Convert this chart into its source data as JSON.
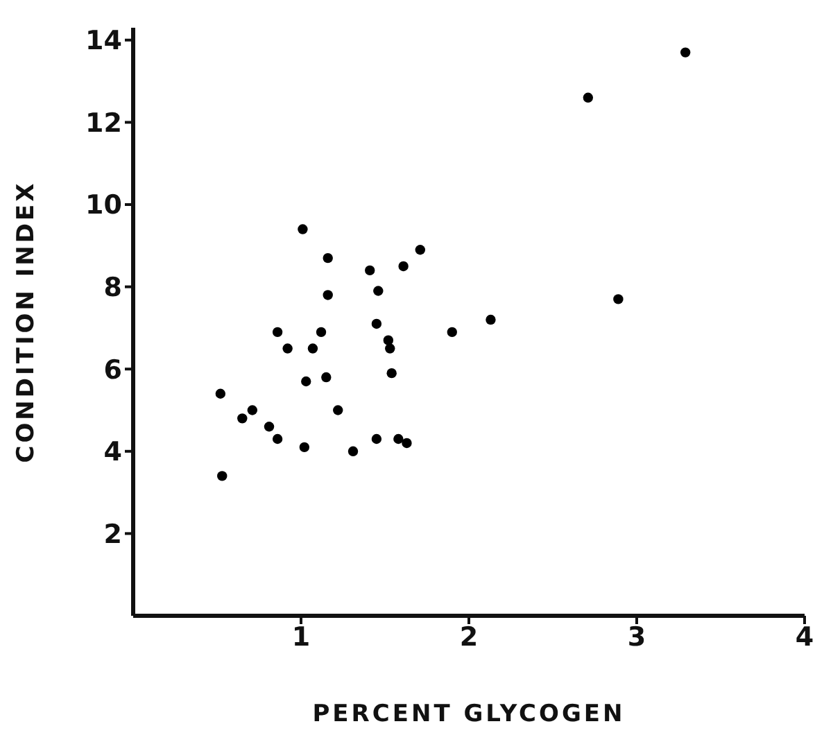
{
  "chart_data": {
    "type": "scatter",
    "xlabel": "PERCENT  GLYCOGEN",
    "ylabel": "CONDITION  INDEX",
    "x": [
      1.01,
      1.16,
      1.71,
      1.41,
      1.61,
      1.16,
      1.46,
      1.45,
      1.9,
      0.86,
      1.12,
      0.92,
      1.07,
      1.52,
      1.53,
      1.54,
      1.15,
      1.03,
      0.52,
      0.71,
      0.65,
      0.81,
      1.22,
      0.86,
      1.02,
      1.31,
      1.45,
      1.58,
      1.63,
      0.53,
      2.13,
      3.29,
      2.71,
      2.89
    ],
    "values": [
      9.4,
      8.7,
      8.9,
      8.4,
      8.5,
      7.8,
      7.9,
      7.1,
      6.9,
      6.9,
      6.9,
      6.5,
      6.5,
      6.7,
      6.5,
      5.9,
      5.8,
      5.7,
      5.4,
      5.0,
      4.8,
      4.6,
      5.0,
      4.3,
      4.1,
      4.0,
      4.3,
      4.3,
      4.2,
      3.4,
      7.2,
      13.7,
      12.6,
      7.7
    ],
    "color": "#000000",
    "marker": "circle",
    "xlim": [
      0,
      4
    ],
    "xticks": [
      1,
      2,
      3,
      4
    ],
    "ylim": [
      0,
      14.3
    ],
    "yticks": [
      2,
      4,
      6,
      8,
      10,
      12,
      14
    ],
    "grid": false,
    "legend": false
  }
}
